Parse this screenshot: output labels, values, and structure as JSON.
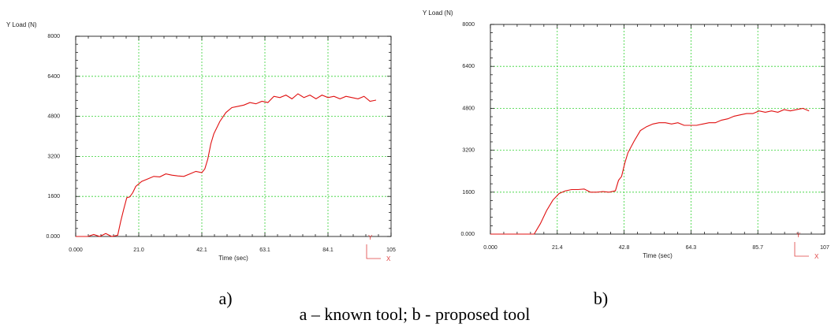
{
  "figure": {
    "caption": "a – known tool; b - proposed tool"
  },
  "chart_data": [
    {
      "type": "line",
      "sublabel": "a)",
      "ylabel": "Y Load (N)",
      "xlabel": "Time (sec)",
      "xlim": [
        0,
        105
      ],
      "ylim": [
        0,
        8000
      ],
      "x_ticks": [
        "0.000",
        "21.0",
        "42.1",
        "63.1",
        "84.1",
        "105"
      ],
      "y_ticks": [
        "0.000",
        "1600",
        "3200",
        "4800",
        "6400",
        "8000"
      ],
      "grid": true,
      "axis_indicator": {
        "y": "Y",
        "x": "X"
      },
      "series": [
        {
          "color": "#e01010",
          "x": [
            0,
            4,
            6,
            8,
            10,
            12,
            14,
            15,
            16,
            17,
            18,
            19,
            20,
            22,
            24,
            26,
            28,
            30,
            32,
            34,
            36,
            38,
            40,
            42,
            43,
            44,
            45,
            46,
            48,
            50,
            52,
            54,
            56,
            58,
            60,
            62,
            64,
            66,
            68,
            70,
            72,
            74,
            76,
            78,
            80,
            82,
            84,
            86,
            88,
            90,
            92,
            94,
            96,
            98,
            100
          ],
          "y": [
            0,
            0,
            80,
            0,
            120,
            0,
            50,
            600,
            1100,
            1550,
            1580,
            1750,
            2000,
            2200,
            2300,
            2400,
            2380,
            2500,
            2450,
            2420,
            2400,
            2500,
            2600,
            2550,
            2700,
            3100,
            3700,
            4100,
            4600,
            4950,
            5150,
            5200,
            5250,
            5350,
            5300,
            5400,
            5350,
            5600,
            5550,
            5650,
            5500,
            5700,
            5550,
            5650,
            5500,
            5650,
            5550,
            5600,
            5500,
            5600,
            5550,
            5500,
            5600,
            5400,
            5450
          ]
        }
      ]
    },
    {
      "type": "line",
      "sublabel": "b)",
      "ylabel": "Y Load (N)",
      "xlabel": "Time (sec)",
      "xlim": [
        0,
        107
      ],
      "ylim": [
        0,
        8000
      ],
      "x_ticks": [
        "0.000",
        "21.4",
        "42.8",
        "64.3",
        "85.7",
        "107"
      ],
      "y_ticks": [
        "0.000",
        "1600",
        "3200",
        "4800",
        "6400",
        "8000"
      ],
      "grid": true,
      "axis_indicator": {
        "y": "Y",
        "x": "X"
      },
      "series": [
        {
          "color": "#e01010",
          "x": [
            0,
            14,
            16,
            18,
            20,
            22,
            24,
            26,
            28,
            30,
            32,
            34,
            36,
            38,
            40,
            41,
            42,
            43,
            44,
            46,
            48,
            50,
            52,
            54,
            56,
            58,
            60,
            62,
            64,
            66,
            68,
            70,
            72,
            74,
            76,
            78,
            80,
            82,
            84,
            86,
            88,
            90,
            92,
            94,
            96,
            98,
            100,
            102
          ],
          "y": [
            0,
            0,
            400,
            900,
            1300,
            1550,
            1650,
            1700,
            1700,
            1720,
            1600,
            1600,
            1620,
            1600,
            1650,
            2050,
            2200,
            2700,
            3100,
            3550,
            3950,
            4100,
            4200,
            4250,
            4250,
            4200,
            4250,
            4150,
            4150,
            4150,
            4200,
            4250,
            4250,
            4350,
            4400,
            4500,
            4550,
            4600,
            4600,
            4700,
            4650,
            4700,
            4650,
            4750,
            4700,
            4750,
            4800,
            4700
          ]
        }
      ]
    }
  ]
}
